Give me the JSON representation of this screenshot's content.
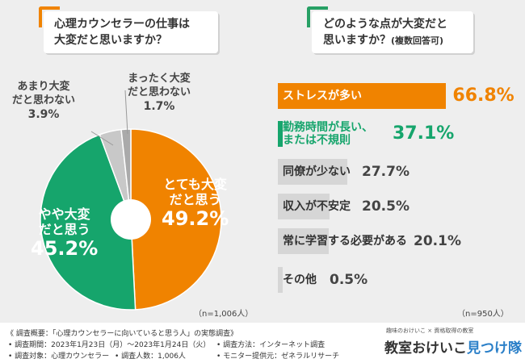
{
  "colors": {
    "orange": "#f08300",
    "green": "#16a56c",
    "gray": "#c8c8c8",
    "gray_dark": "#aaaaaa",
    "bar_gray": "#d6d6d6",
    "bg": "#eeeeee"
  },
  "left_question": {
    "line1": "心理カウンセラーの仕事は",
    "line2": "大変だと思いますか？"
  },
  "right_question": {
    "line1": "どのような点が大変だと",
    "line2": "思いますか？",
    "line2_small": "(複数回答可)"
  },
  "chart_data": [
    {
      "type": "pie",
      "title": "心理カウンセラーの仕事は大変だと思いますか？",
      "categories": [
        "とても大変だと思う",
        "やや大変だと思う",
        "あまり大変だと思わない",
        "まったく大変だと思わない"
      ],
      "values": [
        49.2,
        45.2,
        3.9,
        1.7
      ],
      "display_values": [
        "49.2%",
        "45.2%",
        "3.9%",
        "1.7%"
      ],
      "label_lines": [
        [
          "とても大変",
          "だと思う"
        ],
        [
          "やや大変",
          "だと思う"
        ],
        [
          "あまり大変",
          "だと思わない"
        ],
        [
          "まったく大変",
          "だと思わない"
        ]
      ],
      "colors": [
        "#f08300",
        "#16a56c",
        "#c8c8c8",
        "#aaaaaa"
      ],
      "note": "（n=1,006人）"
    },
    {
      "type": "bar",
      "title": "どのような点が大変だと思いますか？(複数回答可)",
      "categories": [
        "ストレスが多い",
        "勤務時間が長い、または不規則",
        "同僚が少ない",
        "収入が不安定",
        "常に学習する必要がある",
        "その他"
      ],
      "label_lines": [
        [
          "ストレスが多い"
        ],
        [
          "勤務時間が長い、",
          "または不規則"
        ],
        [
          "同僚が少ない"
        ],
        [
          "収入が不安定"
        ],
        [
          "常に学習する必要がある"
        ],
        [
          "その他"
        ]
      ],
      "values": [
        66.8,
        37.1,
        27.7,
        20.5,
        20.1,
        0.5
      ],
      "display_values": [
        "66.8%",
        "37.1%",
        "27.7%",
        "20.5%",
        "20.1%",
        "0.5%"
      ],
      "xlim": [
        0,
        100
      ],
      "note": "（n=950人）"
    }
  ],
  "footer": {
    "overview": "《 調査概要：「心理カウンセラーに向いていると思う人」の実態調査》",
    "period": "• 調査期間：2023年1月23日（月）〜2023年1月24日（火）",
    "method": "• 調査方法：インターネット調査",
    "target": "• 調査対象：心理カウンセラー",
    "count": "• 調査人数：1,006人",
    "provider": "• モニター提供元：ゼネラルリサーチ"
  },
  "logo": {
    "tagline": "趣味のおけいこ × 資格取得の教室",
    "main": "教室おけいこ",
    "brand": "見つけ隊"
  }
}
